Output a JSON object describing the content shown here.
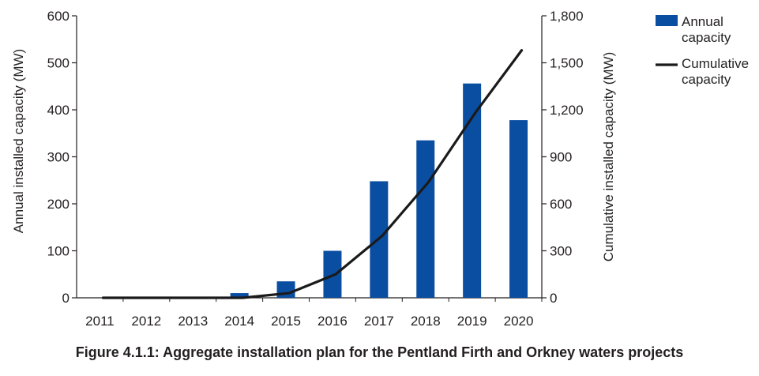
{
  "figure_caption": "Figure 4.1.1: Aggregate installation plan for the Pentland Firth and Orkney waters projects",
  "colors": {
    "bar": "#0a4ea1",
    "line": "#1a1a1a",
    "axis": "#231f20"
  },
  "chart_data": {
    "type": "bar",
    "categories": [
      "2011",
      "2012",
      "2013",
      "2014",
      "2015",
      "2016",
      "2017",
      "2018",
      "2019",
      "2020"
    ],
    "series": [
      {
        "name": "Annual capacity",
        "type": "bar",
        "axis": "left",
        "values": [
          0,
          0,
          0,
          10,
          35,
          100,
          248,
          335,
          456,
          378
        ]
      },
      {
        "name": "Cumulative capacity",
        "type": "line",
        "axis": "right",
        "values": [
          0,
          0,
          0,
          0,
          30,
          150,
          395,
          740,
          1180,
          1580
        ]
      }
    ],
    "ylabel": "Annual installed capacity (MW)",
    "y2label": "Cumulative installed capacity (MW)",
    "ylim": [
      0,
      600
    ],
    "y2lim": [
      0,
      1800
    ],
    "yticks": [
      "0",
      "100",
      "200",
      "300",
      "400",
      "500",
      "600"
    ],
    "y2ticks": [
      "0",
      "300",
      "600",
      "900",
      "1,200",
      "1,500",
      "1,800"
    ],
    "grid": false,
    "legend": "top-right"
  }
}
